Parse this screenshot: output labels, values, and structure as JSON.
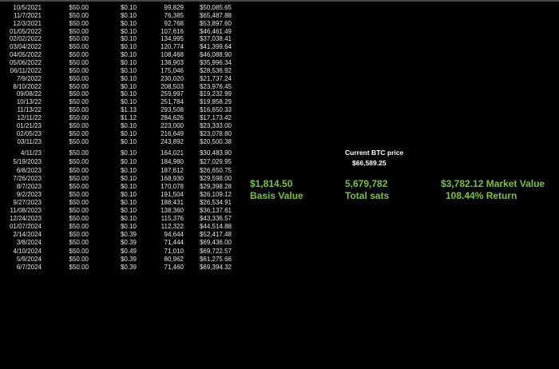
{
  "rows": [
    [
      "10/5/2021",
      "$50.00",
      "$0.10",
      "99,829",
      "$50,085.65"
    ],
    [
      "11/7/2021",
      "$50.00",
      "$0.10",
      "76,385",
      "$65,487.88"
    ],
    [
      "12/3/2021",
      "$50.00",
      "$0.10",
      "92,768",
      "$53,897.60"
    ],
    [
      "01/05/2022",
      "$50.00",
      "$0.10",
      "107,616",
      "$46,461.49"
    ],
    [
      "02/02/2022",
      "$50.00",
      "$0.10",
      "134,995",
      "$37,038.41"
    ],
    [
      "03/04/2022",
      "$50.00",
      "$0.10",
      "120,774",
      "$41,399.64"
    ],
    [
      "04/05/2022",
      "$50.00",
      "$0.10",
      "108,468",
      "$46,088.90"
    ],
    [
      "05/06/2022",
      "$50.00",
      "$0.10",
      "138,903",
      "$35,996.34"
    ],
    [
      "06/11/2022",
      "$50.00",
      "$0.10",
      "175,046",
      "$28,536.92"
    ],
    [
      "7/9/2022",
      "$50.00",
      "$0.10",
      "230,020",
      "$21,737.24"
    ],
    [
      "8/10/2022",
      "$50.00",
      "$0.10",
      "208,503",
      "$23,976.45"
    ],
    [
      "09/08/22",
      "$50.00",
      "$0.10",
      "259,997",
      "$19,232.99"
    ],
    [
      "10/13/22",
      "$50.00",
      "$0.10",
      "251,784",
      "$19,858.29"
    ],
    [
      "11/13/22",
      "$50.00",
      "$1.13",
      "293,508",
      "$16,650.33"
    ],
    [
      "12/11/22",
      "$50.00",
      "$1.12",
      "284,626",
      "$17,173.42"
    ],
    [
      "01/21/23",
      "$50.00",
      "$0.10",
      "223,000",
      "$23,333.00"
    ],
    [
      "02/05/23",
      "$50.00",
      "$0.10",
      "216,649",
      "$23,078.80"
    ],
    [
      "03/11/23",
      "$50.00",
      "$0.10",
      "243,892",
      "$20,500.38"
    ],
    [
      "4/11/23",
      "$50.00",
      "$0.10",
      "164,021",
      "$30,483.90"
    ],
    [
      "5/19/2023",
      "$50.00",
      "$0.10",
      "184,980",
      "$27,029.95"
    ],
    [
      "6/8/2023",
      "$50.00",
      "$0.10",
      "187,612",
      "$26,650.75"
    ],
    [
      "7/26/2023",
      "$50.00",
      "$0.10",
      "168,930",
      "$29,598.00"
    ],
    [
      "8/7/2023",
      "$50.00",
      "$0.10",
      "170,078",
      "$29,398.28"
    ],
    [
      "9/2/2023",
      "$50.00",
      "$0.10",
      "191,504",
      "$26,109.12"
    ],
    [
      "9/27/2023",
      "$50.00",
      "$0.10",
      "188,431",
      "$26,534.91"
    ],
    [
      "11/08/2023",
      "$50.00",
      "$0.10",
      "138,360",
      "$36,137.61"
    ],
    [
      "12/24/2023",
      "$50.00",
      "$0.10",
      "115,376",
      "$43,336.57"
    ],
    [
      "01/07/2024",
      "$50.00",
      "$0.10",
      "112,322",
      "$44,514.88"
    ],
    [
      "2/14/2024",
      "$50.00",
      "$0.39",
      "94,644",
      "$52,417.48"
    ],
    [
      "3/8/2024",
      "$50.00",
      "$0.39",
      "71,444",
      "$69,436.00"
    ],
    [
      "4/10/2024",
      "$50.00",
      "$0.49",
      "71,010",
      "$69,722.57"
    ],
    [
      "5/9/2024",
      "$50.00",
      "$0.39",
      "80,962",
      "$61,275.66"
    ],
    [
      "6/7/2024",
      "$50.00",
      "$0.39",
      "71,460",
      "$69,394.32"
    ]
  ],
  "summary": {
    "btc_price_label": "Current BTC price",
    "btc_price": "$66,589.25",
    "basis_value": "$1,814.50",
    "basis_label": "Basis Value",
    "total_sats": "5,679,782",
    "total_sats_label": "Total sats",
    "market_value": "$3,782.12 Market Value",
    "return": "108.44% Return"
  },
  "colors": {
    "accent": "#7cc242",
    "background": "#000000"
  }
}
